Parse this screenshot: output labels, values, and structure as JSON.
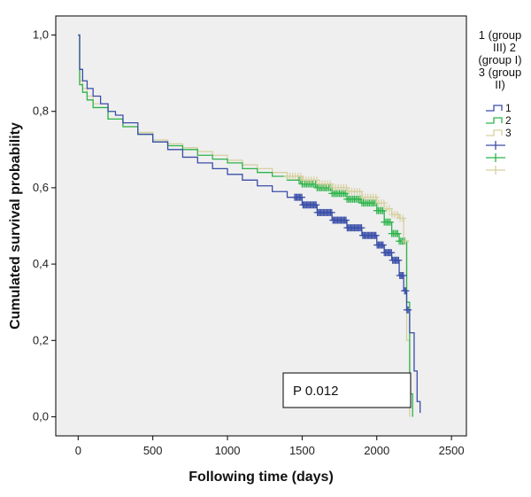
{
  "chart_data": {
    "type": "line",
    "subtype": "kaplan-meier step",
    "xlabel": "Following time (days)",
    "ylabel": "Cumulated survival probability",
    "xlim": [
      -150,
      2600
    ],
    "ylim": [
      -0.05,
      1.05
    ],
    "x_ticks": [
      0,
      500,
      1000,
      1500,
      2000,
      2500
    ],
    "x_tick_labels": [
      "0",
      "500",
      "1000",
      "1500",
      "2000",
      "2500"
    ],
    "y_ticks": [
      0.0,
      0.2,
      0.4,
      0.6,
      0.8,
      1.0
    ],
    "y_tick_labels": [
      "0,0",
      "0,2",
      "0,4",
      "0,6",
      "0,8",
      "1,0"
    ],
    "grid": false,
    "background": "#efefef",
    "legend": {
      "title_lines": [
        "1 (group",
        "III) 2",
        "(group I)",
        "3 (group",
        "II)"
      ],
      "placement": "right",
      "entries": [
        {
          "label": "1",
          "kind": "line",
          "color": "#3a4ea8"
        },
        {
          "label": "2",
          "kind": "line",
          "color": "#2db34a"
        },
        {
          "label": "3",
          "kind": "line",
          "color": "#d6d0a0"
        },
        {
          "label": "",
          "kind": "censor",
          "color": "#3a4ea8"
        },
        {
          "label": "",
          "kind": "censor",
          "color": "#2db34a"
        },
        {
          "label": "",
          "kind": "censor",
          "color": "#d6d0a0"
        }
      ]
    },
    "annotation": "P 0.012",
    "series": [
      {
        "name": "1",
        "color": "#3a4ea8",
        "x": [
          0,
          10,
          30,
          60,
          100,
          150,
          200,
          250,
          300,
          400,
          500,
          600,
          700,
          800,
          900,
          1000,
          1100,
          1200,
          1300,
          1400,
          1500,
          1600,
          1700,
          1800,
          1900,
          2000,
          2050,
          2100,
          2150,
          2180,
          2200,
          2220,
          2250,
          2270,
          2290
        ],
        "y": [
          1.0,
          0.91,
          0.88,
          0.86,
          0.84,
          0.82,
          0.8,
          0.79,
          0.77,
          0.74,
          0.72,
          0.7,
          0.68,
          0.665,
          0.65,
          0.635,
          0.62,
          0.605,
          0.59,
          0.575,
          0.555,
          0.535,
          0.515,
          0.495,
          0.475,
          0.45,
          0.43,
          0.41,
          0.37,
          0.33,
          0.28,
          0.22,
          0.12,
          0.04,
          0.01
        ]
      },
      {
        "name": "2",
        "color": "#2db34a",
        "x": [
          0,
          10,
          30,
          60,
          100,
          200,
          300,
          400,
          500,
          600,
          700,
          800,
          900,
          1000,
          1100,
          1200,
          1300,
          1400,
          1500,
          1600,
          1700,
          1800,
          1900,
          2000,
          2050,
          2100,
          2150,
          2200,
          2220,
          2240
        ],
        "y": [
          1.0,
          0.87,
          0.85,
          0.83,
          0.81,
          0.78,
          0.76,
          0.74,
          0.72,
          0.71,
          0.7,
          0.685,
          0.675,
          0.665,
          0.65,
          0.64,
          0.63,
          0.62,
          0.61,
          0.6,
          0.585,
          0.57,
          0.56,
          0.54,
          0.51,
          0.48,
          0.46,
          0.3,
          0.06,
          0.0
        ]
      },
      {
        "name": "3",
        "color": "#d6d0a0",
        "x": [
          0,
          10,
          30,
          60,
          100,
          200,
          300,
          400,
          500,
          600,
          700,
          800,
          900,
          1000,
          1100,
          1200,
          1300,
          1400,
          1500,
          1600,
          1700,
          1800,
          1900,
          2000,
          2050,
          2100,
          2150,
          2180,
          2200,
          2220
        ],
        "y": [
          1.0,
          0.88,
          0.86,
          0.84,
          0.82,
          0.78,
          0.76,
          0.745,
          0.725,
          0.715,
          0.705,
          0.695,
          0.685,
          0.672,
          0.66,
          0.65,
          0.64,
          0.63,
          0.62,
          0.61,
          0.6,
          0.59,
          0.575,
          0.56,
          0.545,
          0.53,
          0.52,
          0.46,
          0.2,
          0.0
        ]
      }
    ],
    "censor_marks": [
      {
        "series": "1",
        "x_range": [
          1450,
          2210
        ],
        "step": 8
      },
      {
        "series": "2",
        "x_range": [
          1480,
          2190
        ],
        "step": 10
      },
      {
        "series": "3",
        "x_range": [
          1400,
          2200
        ],
        "step": 18
      }
    ]
  }
}
